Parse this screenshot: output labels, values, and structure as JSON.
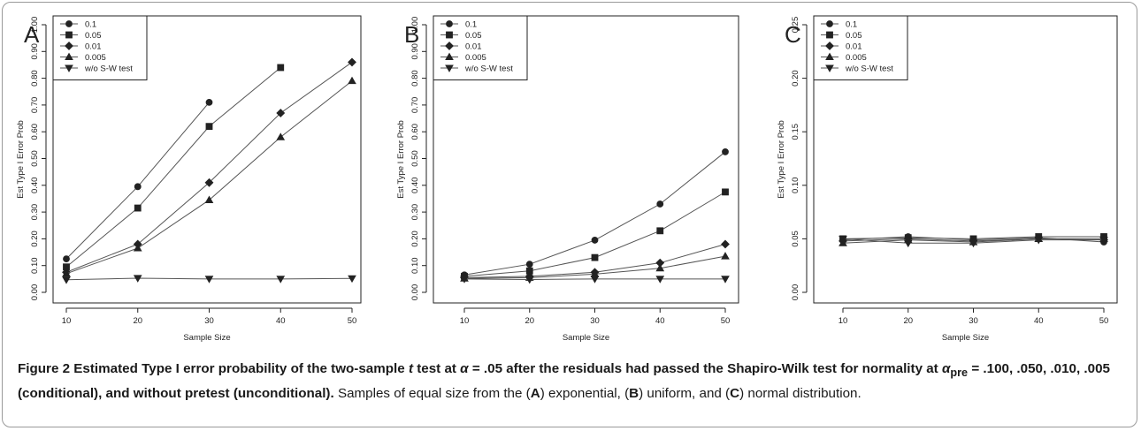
{
  "figure": {
    "caption_title_parts": [
      "Figure 2",
      " Estimated Type I error probability of the two-sample ",
      "t",
      " test at ",
      "α",
      " = .05 after the residuals had passed the Shapiro-Wilk test for normality at ",
      "α",
      "pre",
      " = .100, .050, .010, .005 (conditional), and without pretest (unconditional).",
      " Samples of equal size from the (",
      "A",
      ") exponential, (",
      "B",
      ") uniform, and (",
      "C",
      ") normal distribution."
    ]
  },
  "chart_data": [
    {
      "type": "line",
      "panel_label": "A",
      "xlabel": "Sample Size",
      "ylabel": "Est Type I Error Prob",
      "x": [
        10,
        20,
        30,
        40,
        50
      ],
      "xlim": [
        10,
        50
      ],
      "ylim": [
        0,
        1.0
      ],
      "xticks": [
        "10",
        "20",
        "30",
        "40",
        "50"
      ],
      "yticks": [
        "0.00",
        "0.10",
        "0.20",
        "0.30",
        "0.40",
        "0.50",
        "0.60",
        "0.70",
        "0.80",
        "0.90",
        "1.00"
      ],
      "ytick_values": [
        0,
        0.1,
        0.2,
        0.3,
        0.4,
        0.5,
        0.6,
        0.7,
        0.8,
        0.9,
        1.0
      ],
      "grid": false,
      "legend_position": "top-left",
      "series": [
        {
          "name": "0.1",
          "marker": "circle",
          "values": [
            0.125,
            0.395,
            0.71,
            null,
            null
          ]
        },
        {
          "name": "0.05",
          "marker": "square",
          "values": [
            0.095,
            0.315,
            0.62,
            0.84,
            null
          ]
        },
        {
          "name": "0.01",
          "marker": "diamond",
          "values": [
            0.075,
            0.18,
            0.41,
            0.67,
            0.86
          ]
        },
        {
          "name": "0.005",
          "marker": "triangle-up",
          "values": [
            0.07,
            0.165,
            0.345,
            0.58,
            0.79
          ]
        },
        {
          "name": "w/o S-W test",
          "marker": "triangle-down",
          "values": [
            0.047,
            0.053,
            0.05,
            0.05,
            0.052
          ]
        }
      ]
    },
    {
      "type": "line",
      "panel_label": "B",
      "xlabel": "Sample Size",
      "ylabel": "Est Type I Error Prob",
      "x": [
        10,
        20,
        30,
        40,
        50
      ],
      "xlim": [
        10,
        50
      ],
      "ylim": [
        0,
        1.0
      ],
      "xticks": [
        "10",
        "20",
        "30",
        "40",
        "50"
      ],
      "yticks": [
        "0.00",
        "0.10",
        "0.20",
        "0.30",
        "0.40",
        "0.50",
        "0.60",
        "0.70",
        "0.80",
        "0.90",
        "1.00"
      ],
      "ytick_values": [
        0,
        0.1,
        0.2,
        0.3,
        0.4,
        0.5,
        0.6,
        0.7,
        0.8,
        0.9,
        1.0
      ],
      "grid": false,
      "legend_position": "top-left",
      "series": [
        {
          "name": "0.1",
          "marker": "circle",
          "values": [
            0.065,
            0.105,
            0.195,
            0.33,
            0.525
          ]
        },
        {
          "name": "0.05",
          "marker": "square",
          "values": [
            0.06,
            0.08,
            0.13,
            0.23,
            0.375
          ]
        },
        {
          "name": "0.01",
          "marker": "diamond",
          "values": [
            0.055,
            0.06,
            0.075,
            0.11,
            0.18
          ]
        },
        {
          "name": "0.005",
          "marker": "triangle-up",
          "values": [
            0.052,
            0.055,
            0.068,
            0.09,
            0.135
          ]
        },
        {
          "name": "w/o S-W test",
          "marker": "triangle-down",
          "values": [
            0.05,
            0.048,
            0.05,
            0.05,
            0.05
          ]
        }
      ]
    },
    {
      "type": "line",
      "panel_label": "C",
      "xlabel": "Sample Size",
      "ylabel": "Est Type I Error Prob",
      "x": [
        10,
        20,
        30,
        40,
        50
      ],
      "xlim": [
        10,
        50
      ],
      "ylim": [
        0,
        0.25
      ],
      "xticks": [
        "10",
        "20",
        "30",
        "40",
        "50"
      ],
      "yticks": [
        "0.00",
        "0.05",
        "0.10",
        "0.15",
        "0.20",
        "0.25"
      ],
      "ytick_values": [
        0,
        0.05,
        0.1,
        0.15,
        0.2,
        0.25
      ],
      "grid": false,
      "legend_position": "top-left",
      "series": [
        {
          "name": "0.1",
          "marker": "circle",
          "values": [
            0.049,
            0.052,
            0.049,
            0.051,
            0.047
          ]
        },
        {
          "name": "0.05",
          "marker": "square",
          "values": [
            0.05,
            0.051,
            0.05,
            0.052,
            0.052
          ]
        },
        {
          "name": "0.01",
          "marker": "diamond",
          "values": [
            0.048,
            0.05,
            0.048,
            0.05,
            0.049
          ]
        },
        {
          "name": "0.005",
          "marker": "triangle-up",
          "values": [
            0.046,
            0.049,
            0.047,
            0.05,
            0.05
          ]
        },
        {
          "name": "w/o S-W test",
          "marker": "triangle-down",
          "values": [
            0.05,
            0.046,
            0.046,
            0.049,
            0.049
          ]
        }
      ]
    }
  ]
}
